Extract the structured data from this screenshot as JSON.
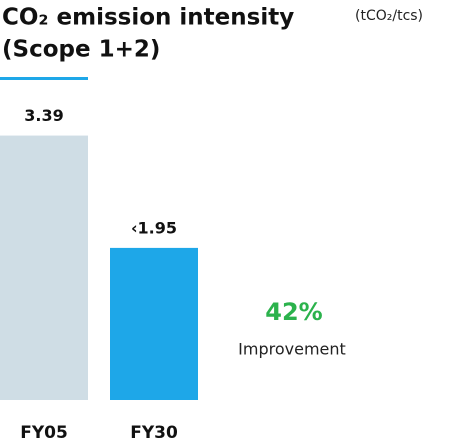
{
  "chart_data": {
    "type": "bar",
    "title": [
      "CO₂ emission intensity",
      "(Scope 1+2)"
    ],
    "unit": "(tCO₂/tcs)",
    "categories": [
      "FY05",
      "FY30"
    ],
    "values": [
      3.39,
      1.95
    ],
    "value_labels": [
      "3.39",
      "‹1.95"
    ],
    "colors": [
      "#cfdde5",
      "#1ea7e8"
    ],
    "annotation": {
      "value": "42%",
      "label": "Improvement"
    }
  }
}
